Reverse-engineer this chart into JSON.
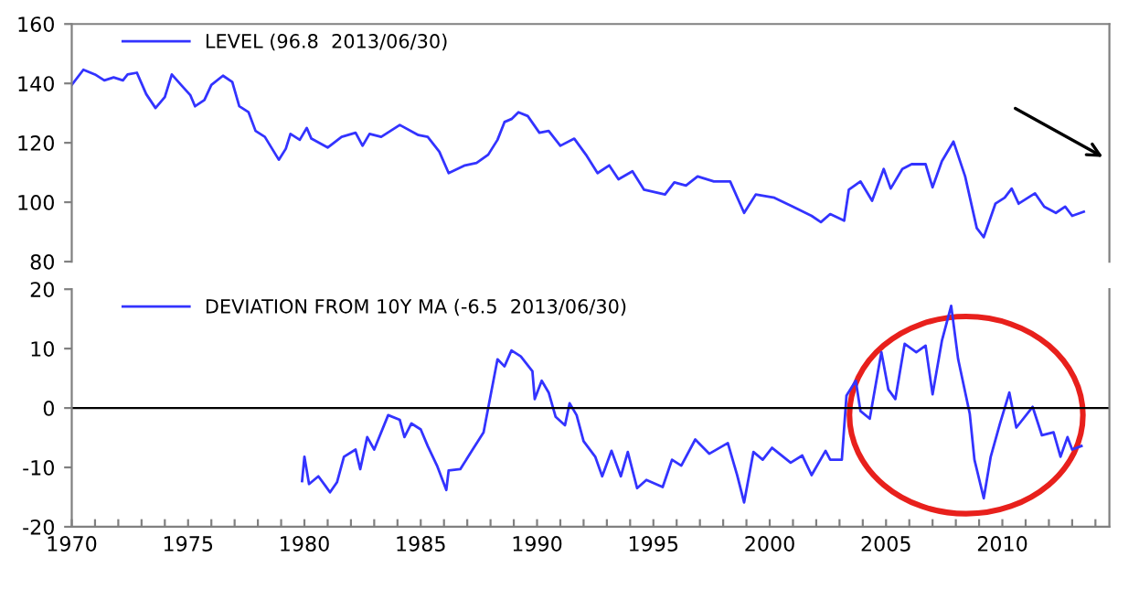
{
  "chart_data": [
    {
      "type": "line",
      "tick_labels": "y",
      "legend": "top left",
      "grid": false,
      "xlim": [
        1970,
        2014.6
      ],
      "ylim": [
        80,
        160
      ],
      "yticks": [
        80,
        100,
        120,
        140,
        160
      ],
      "series": [
        {
          "name": "LEVEL (96.8  2013/06/30)",
          "color": "#3333ff",
          "x": [
            1970.0,
            1970.5,
            1971.0,
            1971.4,
            1971.8,
            1972.2,
            1972.4,
            1972.8,
            1973.2,
            1973.6,
            1974.0,
            1974.3,
            1974.7,
            1975.1,
            1975.3,
            1975.7,
            1976.0,
            1976.5,
            1976.9,
            1977.2,
            1977.6,
            1977.9,
            1978.3,
            1978.9,
            1979.2,
            1979.4,
            1979.8,
            1980.1,
            1980.3,
            1981.0,
            1981.6,
            1982.2,
            1982.5,
            1982.8,
            1983.3,
            1984.1,
            1984.9,
            1985.3,
            1985.8,
            1986.2,
            1986.9,
            1987.4,
            1987.9,
            1988.3,
            1988.6,
            1988.9,
            1989.2,
            1989.6,
            1990.1,
            1990.5,
            1991.0,
            1991.6,
            1992.1,
            1992.6,
            1993.1,
            1993.5,
            1994.1,
            1994.6,
            1995.5,
            1995.9,
            1996.4,
            1996.9,
            1997.6,
            1998.3,
            1998.9,
            1999.4,
            2000.2,
            2001.0,
            2001.8,
            2002.2,
            2002.6,
            2003.2,
            2003.4,
            2003.9,
            2004.4,
            2004.9,
            2005.2,
            2005.7,
            2006.1,
            2006.7,
            2007.0,
            2007.4,
            2007.9,
            2008.4,
            2008.9,
            2009.2,
            2009.7,
            2010.1,
            2010.4,
            2010.7,
            2011.4,
            2011.8,
            2012.3,
            2012.7,
            2013.0,
            2013.5
          ],
          "values": [
            139.5,
            144.6,
            143,
            141,
            142,
            141,
            143,
            143.6,
            136.4,
            131.7,
            135.4,
            143,
            139.5,
            136,
            132.3,
            134.4,
            139.5,
            142.6,
            140.5,
            132.3,
            130.3,
            124,
            122,
            114.3,
            118,
            123,
            121,
            125,
            121.4,
            118.4,
            122,
            123.4,
            119,
            123,
            122,
            126,
            122.6,
            122,
            117,
            109.8,
            112.4,
            113.2,
            116,
            121,
            127,
            128,
            130.3,
            129,
            123.4,
            124,
            119,
            121.4,
            116,
            109.8,
            112.4,
            107.7,
            110.4,
            104.2,
            102.6,
            106.7,
            105.6,
            108.7,
            107,
            107,
            96.4,
            102.6,
            101.5,
            98.5,
            95.4,
            93.3,
            96,
            93.8,
            104.2,
            107,
            100.5,
            111.2,
            104.6,
            111.2,
            112.8,
            112.8,
            105,
            113.8,
            120.4,
            108.7,
            91.3,
            88.2,
            99.5,
            101.5,
            104.6,
            99.5,
            103,
            98.5,
            96.4,
            98.5,
            95.4,
            96.8
          ]
        }
      ]
    },
    {
      "type": "line",
      "legend": "top left",
      "grid": false,
      "xlim": [
        1970,
        2014.6
      ],
      "ylim": [
        -20,
        20
      ],
      "yticks": [
        -20,
        -10,
        0,
        10,
        20
      ],
      "xticks": [
        1970,
        {
          "value": 1971,
          "label": null
        },
        {
          "value": 1972,
          "label": null
        },
        {
          "value": 1973,
          "label": null
        },
        {
          "value": 1974,
          "label": null
        },
        1975,
        {
          "value": 1976,
          "label": null
        },
        {
          "value": 1977,
          "label": null
        },
        {
          "value": 1978,
          "label": null
        },
        {
          "value": 1979,
          "label": null
        },
        1980,
        {
          "value": 1981,
          "label": null
        },
        {
          "value": 1982,
          "label": null
        },
        {
          "value": 1983,
          "label": null
        },
        {
          "value": 1984,
          "label": null
        },
        1985,
        {
          "value": 1986,
          "label": null
        },
        {
          "value": 1987,
          "label": null
        },
        {
          "value": 1988,
          "label": null
        },
        {
          "value": 1989,
          "label": null
        },
        1990,
        {
          "value": 1991,
          "label": null
        },
        {
          "value": 1992,
          "label": null
        },
        {
          "value": 1993,
          "label": null
        },
        {
          "value": 1994,
          "label": null
        },
        1995,
        {
          "value": 1996,
          "label": null
        },
        {
          "value": 1997,
          "label": null
        },
        {
          "value": 1998,
          "label": null
        },
        {
          "value": 1999,
          "label": null
        },
        2000,
        {
          "value": 2001,
          "label": null
        },
        {
          "value": 2002,
          "label": null
        },
        {
          "value": 2003,
          "label": null
        },
        {
          "value": 2004,
          "label": null
        },
        2005,
        {
          "value": 2006,
          "label": null
        },
        {
          "value": 2007,
          "label": null
        },
        {
          "value": 2008,
          "label": null
        },
        {
          "value": 2009,
          "label": null
        },
        2010,
        {
          "value": 2011,
          "label": null
        },
        {
          "value": 2012,
          "label": null
        },
        {
          "value": 2013,
          "label": null
        },
        {
          "value": 2014,
          "label": null
        }
      ],
      "ref_lines": [
        {
          "axis": "y",
          "value": 0,
          "color": "#000000"
        }
      ],
      "series": [
        {
          "name": "DEVIATION FROM 10Y MA (-6.5  2013/06/30)",
          "color": "#3333ff",
          "x": [
            1979.9,
            1980.0,
            1980.2,
            1980.6,
            1980.9,
            1981.1,
            1981.4,
            1981.7,
            1982.2,
            1982.4,
            1982.7,
            1983.0,
            1983.6,
            1984.1,
            1984.3,
            1984.6,
            1985.0,
            1985.3,
            1985.7,
            1986.1,
            1986.2,
            1986.7,
            1987.2,
            1987.7,
            1987.9,
            1988.3,
            1988.6,
            1988.9,
            1989.3,
            1989.8,
            1989.9,
            1990.2,
            1990.5,
            1990.8,
            1991.2,
            1991.4,
            1991.7,
            1992.0,
            1992.5,
            1992.8,
            1993.2,
            1993.6,
            1993.9,
            1994.3,
            1994.7,
            1995.4,
            1995.8,
            1996.2,
            1996.8,
            1997.4,
            1998.2,
            1998.6,
            1998.9,
            1999.3,
            1999.7,
            2000.1,
            2000.9,
            2001.4,
            2001.8,
            2002.4,
            2002.6,
            2003.1,
            2003.3,
            2003.7,
            2003.9,
            2004.3,
            2004.8,
            2005.1,
            2005.4,
            2005.8,
            2006.3,
            2006.7,
            2007.0,
            2007.4,
            2007.8,
            2008.1,
            2008.6,
            2008.8,
            2009.2,
            2009.5,
            2009.9,
            2010.3,
            2010.6,
            2011.3,
            2011.7,
            2012.2,
            2012.5,
            2012.8,
            2013.0,
            2013.4
          ],
          "values": [
            -12.3,
            -8.2,
            -12.8,
            -11.5,
            -13.1,
            -14.2,
            -12.5,
            -8.2,
            -7,
            -10.3,
            -4.9,
            -7,
            -1.2,
            -2,
            -4.9,
            -2.6,
            -3.6,
            -6.4,
            -9.7,
            -13.8,
            -10.5,
            -10.3,
            -7.2,
            -4.1,
            0,
            8.2,
            7,
            9.7,
            8.7,
            6.2,
            1.5,
            4.6,
            2.6,
            -1.5,
            -2.9,
            0.8,
            -1.2,
            -5.6,
            -8.2,
            -11.5,
            -7.2,
            -11.5,
            -7.4,
            -13.5,
            -12.1,
            -13.3,
            -8.7,
            -9.7,
            -5.3,
            -7.7,
            -5.9,
            -11.3,
            -15.9,
            -7.4,
            -8.7,
            -6.7,
            -9.2,
            -8,
            -11.3,
            -7.2,
            -8.7,
            -8.7,
            2.1,
            4.6,
            -0.5,
            -1.8,
            9.4,
            3.1,
            1.5,
            10.8,
            9.4,
            10.5,
            2.3,
            11.3,
            17.2,
            8.2,
            -1,
            -8.7,
            -15.2,
            -8.2,
            -2.6,
            2.6,
            -3.3,
            0.2,
            -4.6,
            -4.1,
            -8.2,
            -4.9,
            -7,
            -6.4
          ]
        }
      ]
    }
  ]
}
